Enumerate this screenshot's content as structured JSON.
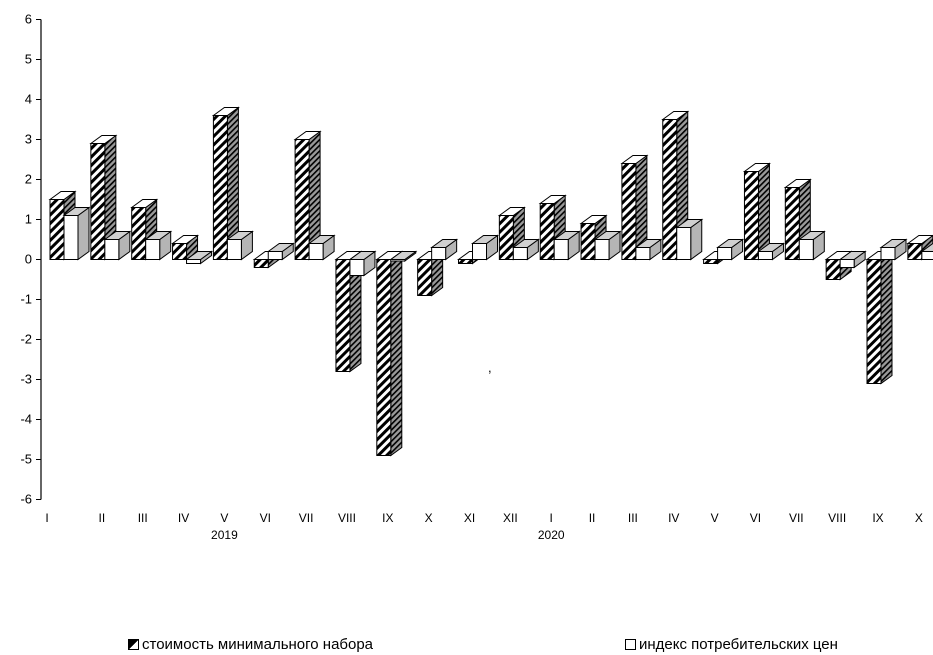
{
  "chart_data": {
    "type": "bar",
    "annotation": ",",
    "y_ticks": [
      "6",
      "5",
      "4",
      "3",
      "2",
      "1",
      "0",
      "-1",
      "-2",
      "-3",
      "-4",
      "-5",
      "-6"
    ],
    "ylim": [
      -6,
      6
    ],
    "categories": [
      "I",
      "II",
      "III",
      "IV",
      "V",
      "VI",
      "VII",
      "VIII",
      "IX",
      "X",
      "XI",
      "XII",
      "I",
      "II",
      "III",
      "IV",
      "V",
      "VI",
      "VII",
      "VIII",
      "IX",
      "X"
    ],
    "year_labels": [
      {
        "label": "2019",
        "under_index": 4
      },
      {
        "label": "2020",
        "under_index": 12
      }
    ],
    "series": [
      {
        "name": "стоимость минимального набора",
        "values": [
          1.5,
          2.9,
          1.3,
          0.4,
          3.6,
          -0.2,
          3.0,
          -2.8,
          -4.9,
          -0.9,
          -0.1,
          1.1,
          1.4,
          0.9,
          2.4,
          3.5,
          -0.1,
          2.2,
          1.8,
          -0.5,
          -3.1,
          0.4
        ]
      },
      {
        "name": "индекс потребительских цен",
        "values": [
          1.1,
          0.5,
          0.5,
          -0.1,
          0.5,
          0.2,
          0.4,
          -0.4,
          0.0,
          0.3,
          0.4,
          0.3,
          0.5,
          0.5,
          0.3,
          0.8,
          0.3,
          0.2,
          0.5,
          -0.2,
          0.3,
          0.2
        ]
      }
    ],
    "legend_position": "bottom",
    "grid": false
  },
  "legend": [
    {
      "label": "стоимость минимального набора"
    },
    {
      "label": "индекс потребительских цен"
    }
  ]
}
